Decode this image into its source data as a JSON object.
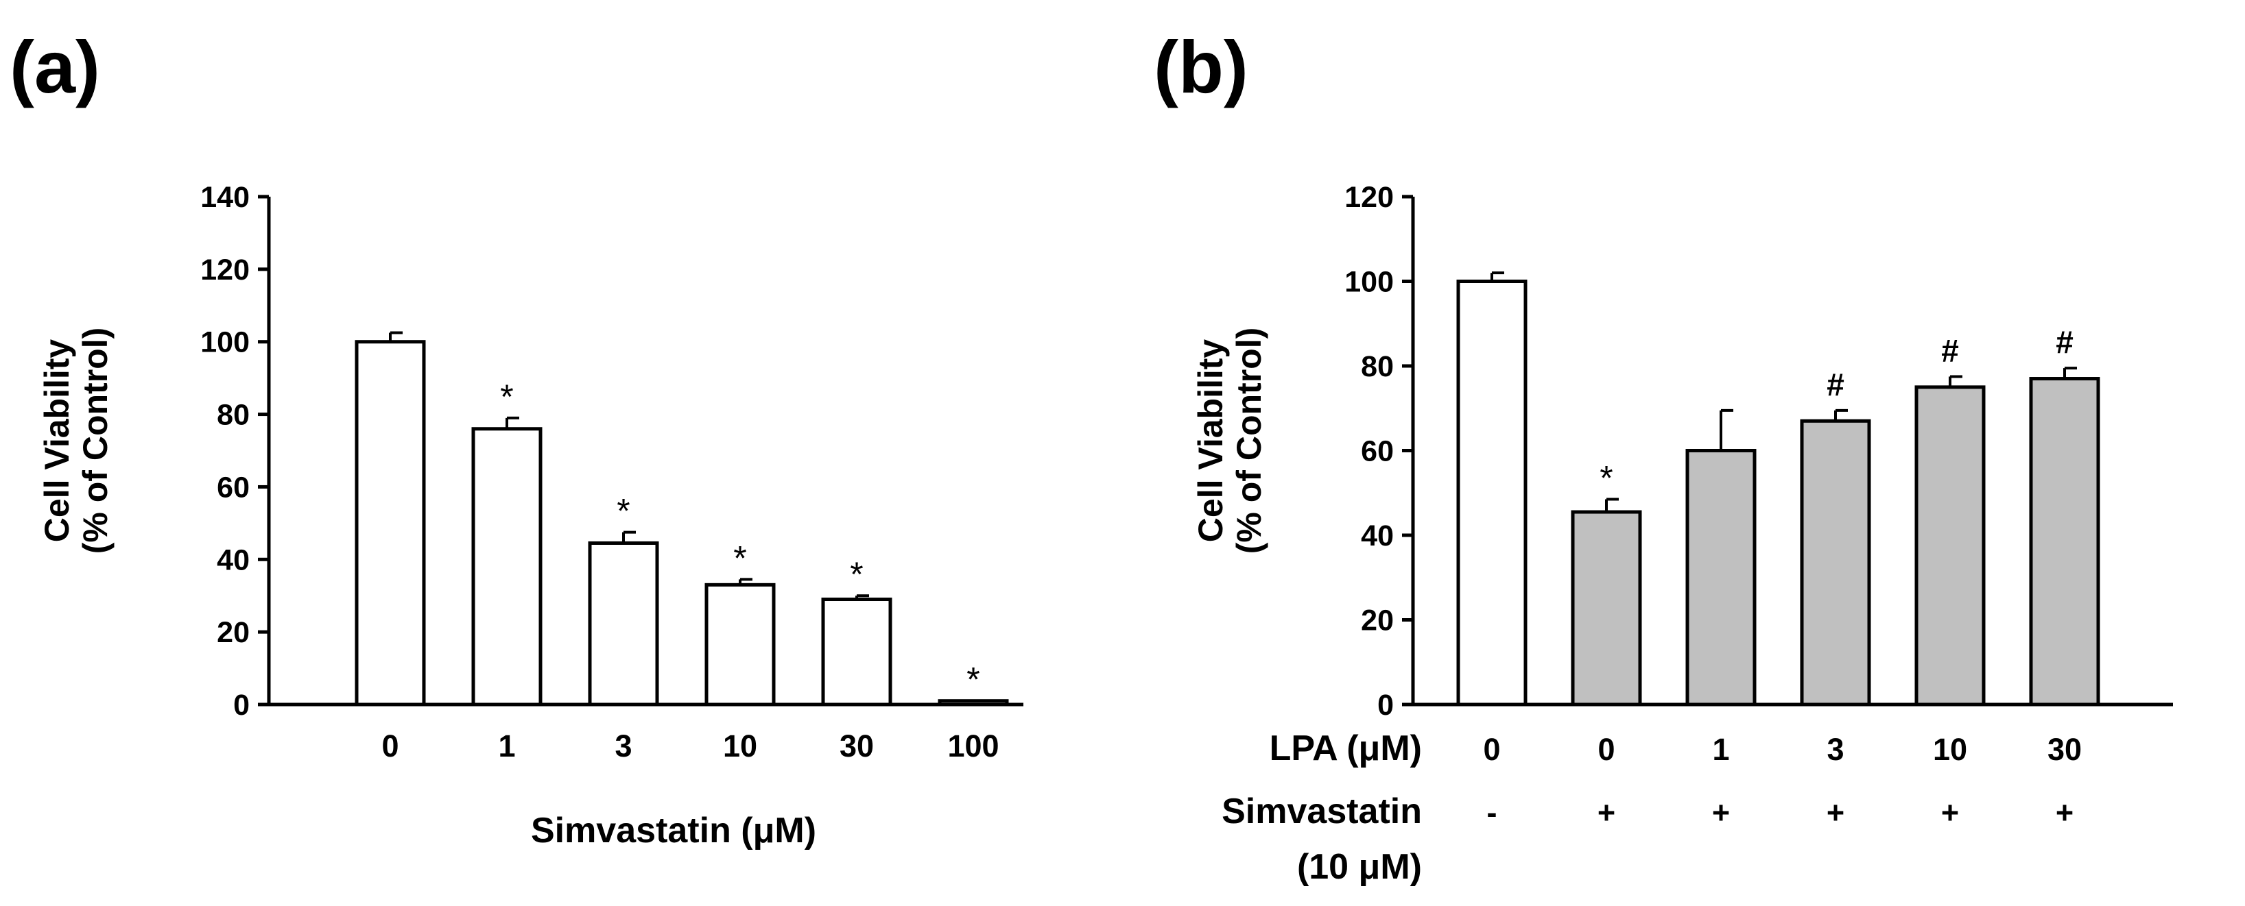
{
  "figure": {
    "colors": {
      "open_bar": "#ffffff",
      "filled_bar": "#c0c0c0",
      "ink": "#000000"
    }
  },
  "chart_data": [
    {
      "panel": "(a)",
      "type": "bar",
      "title": "",
      "ylabel_line1": "Cell Viability",
      "ylabel_line2": "(% of Control)",
      "xlabel": "Simvastatin (μM)",
      "ylim": [
        0,
        140
      ],
      "yticks": [
        0,
        20,
        40,
        60,
        80,
        100,
        120,
        140
      ],
      "categories": [
        "0",
        "1",
        "3",
        "10",
        "30",
        "100"
      ],
      "values": [
        100,
        76,
        44.5,
        33,
        29,
        1
      ],
      "errors": [
        2.5,
        3,
        3,
        1.5,
        1,
        0
      ],
      "annotations": [
        "",
        "*",
        "*",
        "*",
        "*",
        "*"
      ],
      "fills": [
        "open",
        "open",
        "open",
        "open",
        "open",
        "open"
      ]
    },
    {
      "panel": "(b)",
      "type": "bar",
      "title": "",
      "ylabel_line1": "Cell Viability",
      "ylabel_line2": "(% of Control)",
      "ylim": [
        0,
        120
      ],
      "yticks": [
        0,
        20,
        40,
        60,
        80,
        100,
        120
      ],
      "row1_label": "LPA (μM)",
      "row2_label_line1": "Simvastatin",
      "row2_label_line2": "(10 μM)",
      "categories": [
        "0",
        "0",
        "1",
        "3",
        "10",
        "30"
      ],
      "simvastatin": [
        "-",
        "+",
        "+",
        "+",
        "+",
        "+"
      ],
      "values": [
        100,
        45.5,
        60,
        67,
        75,
        77
      ],
      "errors": [
        2,
        3,
        9.5,
        2.5,
        2.5,
        2.5
      ],
      "annotations": [
        "",
        "*",
        "",
        "#",
        "#",
        "#"
      ],
      "fills": [
        "open",
        "filled",
        "filled",
        "filled",
        "filled",
        "filled"
      ]
    }
  ]
}
